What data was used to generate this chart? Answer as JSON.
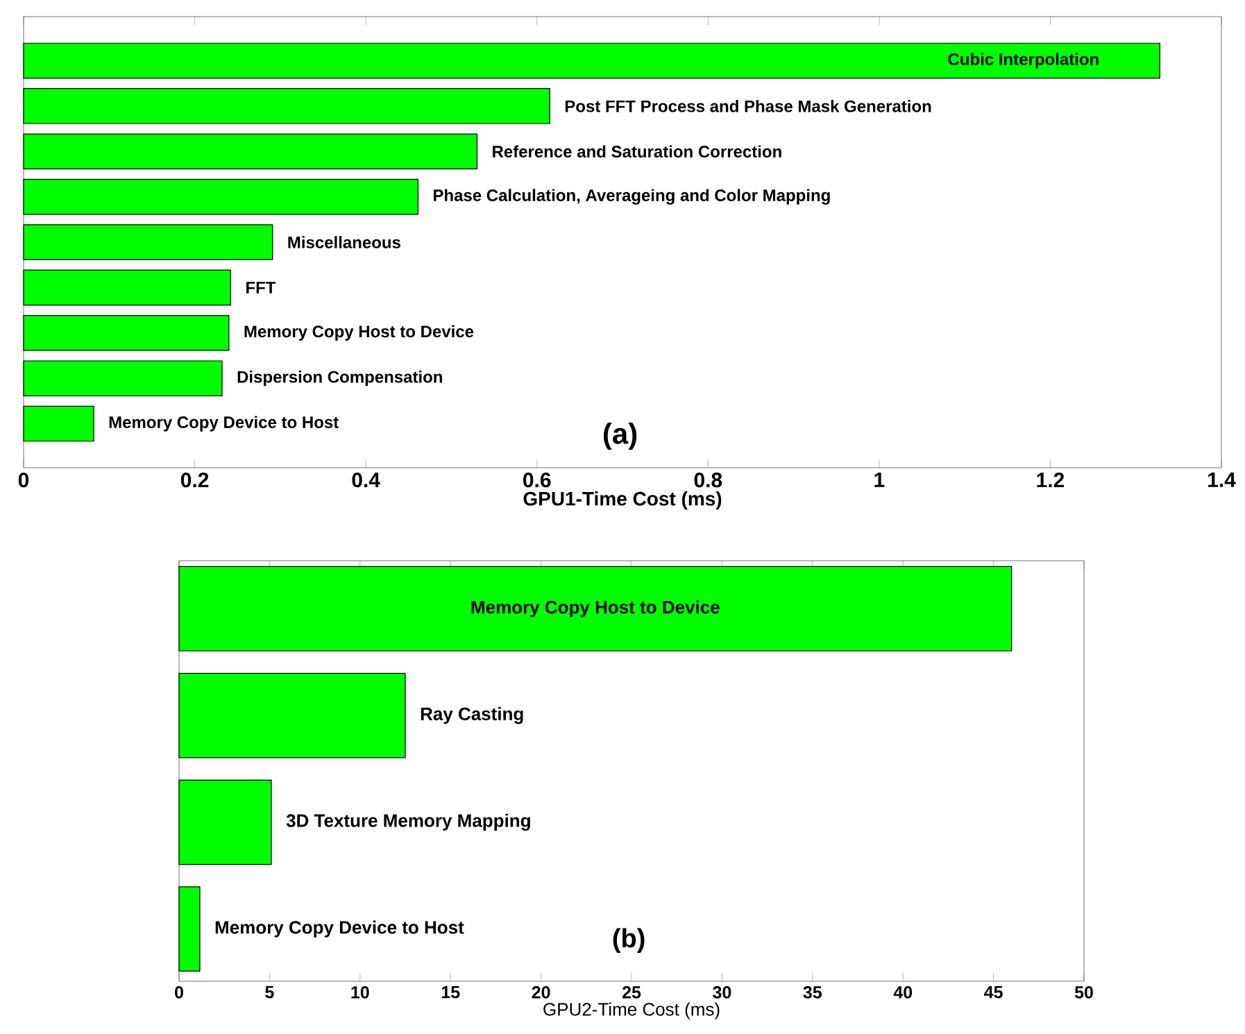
{
  "chart_data": [
    {
      "type": "bar",
      "orientation": "horizontal",
      "xlabel": "GPU1-Time Cost (ms)",
      "categories": [
        "Cubic Interpolation",
        "Post FFT Process and Phase Mask Generation",
        "Reference and Saturation Correction",
        "Phase Calculation, Averageing and Color Mapping",
        "Miscellaneous",
        "FFT",
        "Memory Copy Host to Device",
        "Dispersion Compensation",
        "Memory Copy Device to Host"
      ],
      "values": [
        1.328,
        0.615,
        0.53,
        0.461,
        0.291,
        0.242,
        0.24,
        0.232,
        0.082
      ],
      "color": "#00ff00",
      "xlim": [
        0,
        1.4
      ],
      "xticks": [
        0,
        0.2,
        0.4,
        0.6,
        0.8,
        1,
        1.2,
        1.4
      ],
      "annotations": [
        "(a)"
      ]
    },
    {
      "type": "bar",
      "orientation": "horizontal",
      "xlabel": "GPU2-Time Cost (ms)",
      "categories": [
        "Memory Copy Host to Device",
        "Ray Casting",
        "3D Texture Memory Mapping",
        "Memory Copy Device to Host"
      ],
      "values": [
        46.0,
        12.5,
        5.1,
        1.15
      ],
      "color": "#00ff00",
      "xlim": [
        0,
        50
      ],
      "xticks": [
        0,
        5,
        10,
        15,
        20,
        25,
        30,
        35,
        40,
        45,
        50
      ],
      "annotations": [
        "(b)"
      ]
    }
  ]
}
